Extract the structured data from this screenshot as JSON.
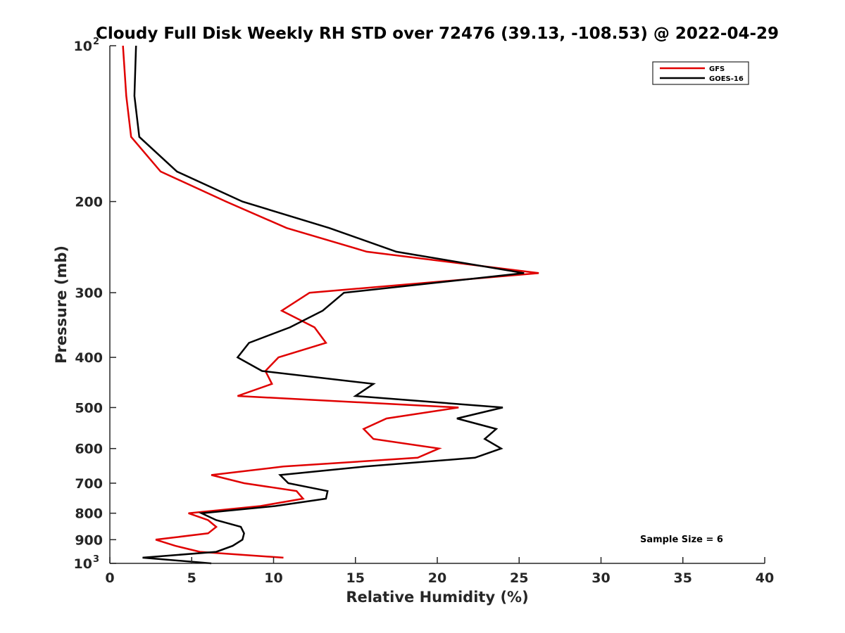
{
  "chart_data": {
    "type": "line",
    "title": "Cloudy Full Disk Weekly RH STD over 72476 (39.13, -108.53) @ 2022-04-29",
    "xlabel": "Relative Humidity (%)",
    "ylabel": "Pressure (mb)",
    "xlim": [
      0,
      40
    ],
    "ylim": [
      100,
      1000
    ],
    "y_scale": "log",
    "y_reversed": true,
    "grid": false,
    "legend_position": "top-right",
    "annotation": "Sample Size = 6",
    "x_ticks": [
      "0",
      "5",
      "10",
      "15",
      "20",
      "25",
      "30",
      "35",
      "40"
    ],
    "y_ticks": [
      {
        "value": 100,
        "base": "10",
        "exp": "2"
      },
      {
        "value": 200,
        "label": "200"
      },
      {
        "value": 300,
        "label": "300"
      },
      {
        "value": 400,
        "label": "400"
      },
      {
        "value": 500,
        "label": "500"
      },
      {
        "value": 600,
        "label": "600"
      },
      {
        "value": 700,
        "label": "700"
      },
      {
        "value": 800,
        "label": "800"
      },
      {
        "value": 900,
        "label": "900"
      },
      {
        "value": 1000,
        "base": "10",
        "exp": "3"
      }
    ],
    "series": [
      {
        "name": "GFS",
        "color": "#e00000",
        "points": [
          [
            0.8,
            100
          ],
          [
            1.0,
            125
          ],
          [
            1.3,
            150
          ],
          [
            3.1,
            175
          ],
          [
            7.1,
            200
          ],
          [
            10.8,
            225
          ],
          [
            15.7,
            250
          ],
          [
            26.2,
            275
          ],
          [
            12.2,
            300
          ],
          [
            10.5,
            325
          ],
          [
            12.5,
            350
          ],
          [
            13.2,
            375
          ],
          [
            10.3,
            400
          ],
          [
            9.5,
            425
          ],
          [
            9.9,
            450
          ],
          [
            7.8,
            475
          ],
          [
            21.3,
            500
          ],
          [
            16.9,
            525
          ],
          [
            15.5,
            550
          ],
          [
            16.1,
            575
          ],
          [
            20.1,
            600
          ],
          [
            18.8,
            625
          ],
          [
            10.6,
            650
          ],
          [
            6.2,
            675
          ],
          [
            8.2,
            700
          ],
          [
            11.4,
            725
          ],
          [
            11.8,
            750
          ],
          [
            9.2,
            775
          ],
          [
            4.8,
            800
          ],
          [
            6.0,
            825
          ],
          [
            6.5,
            850
          ],
          [
            6.0,
            875
          ],
          [
            2.8,
            900
          ],
          [
            4.0,
            925
          ],
          [
            5.5,
            950
          ],
          [
            10.6,
            975
          ]
        ]
      },
      {
        "name": "GOES-16",
        "color": "#000000",
        "points": [
          [
            1.6,
            100
          ],
          [
            1.5,
            125
          ],
          [
            1.8,
            150
          ],
          [
            4.1,
            175
          ],
          [
            8.1,
            200
          ],
          [
            13.4,
            225
          ],
          [
            17.5,
            250
          ],
          [
            25.3,
            275
          ],
          [
            14.3,
            300
          ],
          [
            13.0,
            325
          ],
          [
            11.0,
            350
          ],
          [
            8.5,
            375
          ],
          [
            7.8,
            400
          ],
          [
            9.3,
            425
          ],
          [
            16.1,
            450
          ],
          [
            15.0,
            475
          ],
          [
            24.0,
            500
          ],
          [
            21.2,
            525
          ],
          [
            23.6,
            550
          ],
          [
            22.9,
            575
          ],
          [
            23.9,
            600
          ],
          [
            22.3,
            625
          ],
          [
            15.6,
            650
          ],
          [
            10.4,
            675
          ],
          [
            10.9,
            700
          ],
          [
            13.3,
            725
          ],
          [
            13.2,
            750
          ],
          [
            10.1,
            775
          ],
          [
            5.6,
            800
          ],
          [
            6.5,
            825
          ],
          [
            8.0,
            850
          ],
          [
            8.2,
            875
          ],
          [
            8.1,
            900
          ],
          [
            7.5,
            925
          ],
          [
            6.5,
            950
          ],
          [
            2.0,
            975
          ],
          [
            6.2,
            1000
          ]
        ]
      }
    ]
  }
}
